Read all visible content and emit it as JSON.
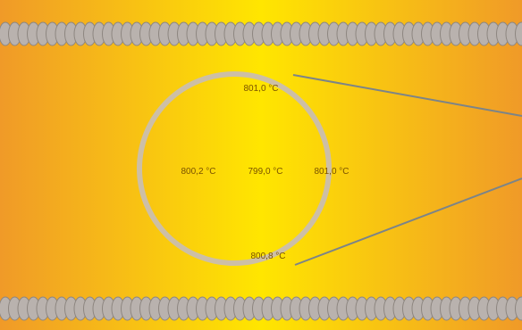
{
  "readings": {
    "top": "801,0 °C",
    "left": "800,2 °C",
    "center": "799,0 °C",
    "right": "801,0 °C",
    "bottom": "800,8 °C"
  },
  "colors": {
    "edge": "#f09a28",
    "core": "#ffe600",
    "coil": "#b9b2ae",
    "ring": "#cdbfa6",
    "pointer": "#7c8488"
  },
  "icons": [
    "heating-coil-top",
    "heating-coil-bottom",
    "wafer-ring",
    "callout-lines"
  ]
}
